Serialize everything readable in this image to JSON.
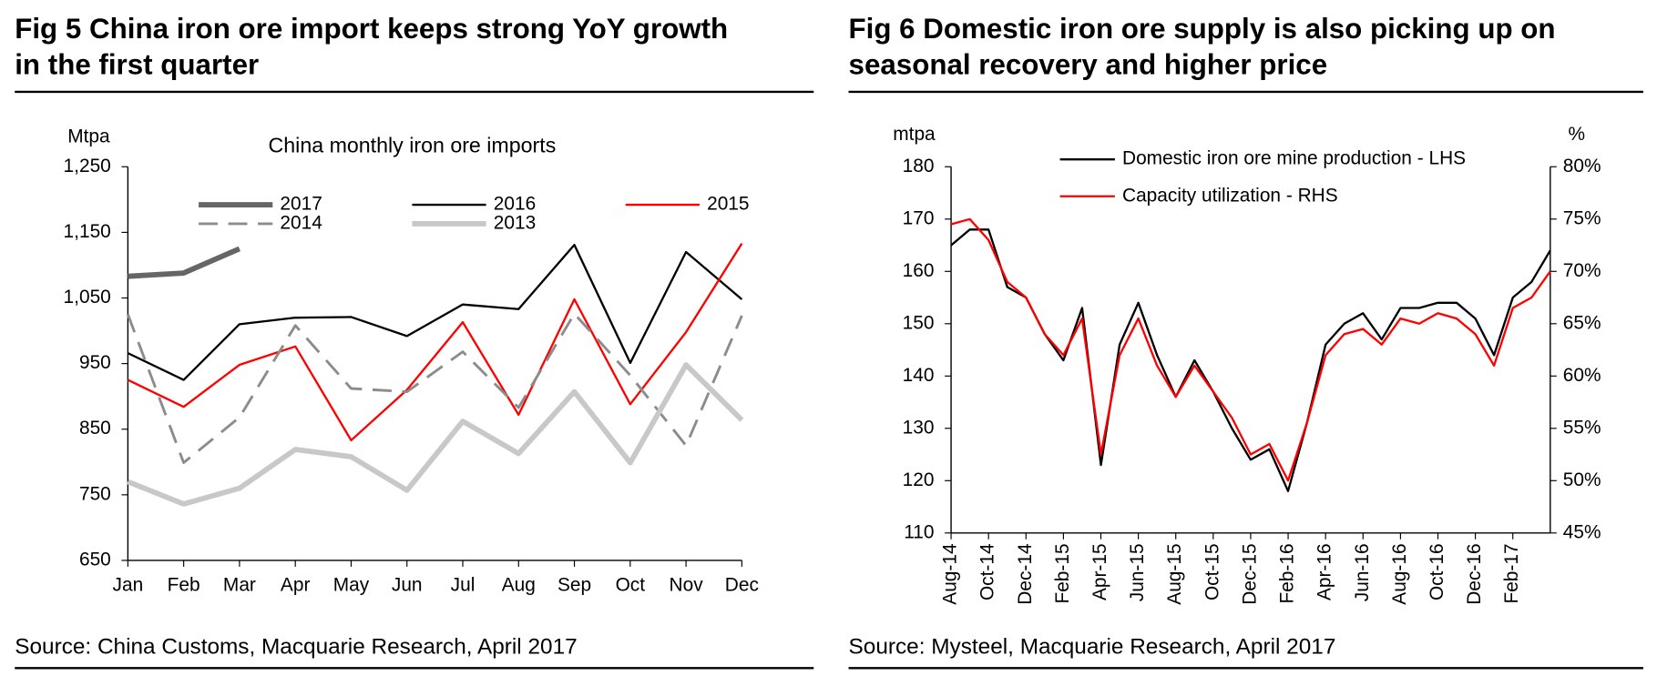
{
  "chart_data": [
    {
      "type": "line",
      "title": [
        "Fig 5   China iron ore import keeps strong YoY growth",
        "in the first quarter"
      ],
      "subtitle": "China monthly iron ore imports",
      "y_label": "Mtpa",
      "source": "Source: China Customs, Macquarie Research, April 2017",
      "categories": [
        "Jan",
        "Feb",
        "Mar",
        "Apr",
        "May",
        "Jun",
        "Jul",
        "Aug",
        "Sep",
        "Oct",
        "Nov",
        "Dec"
      ],
      "ylim": [
        650,
        1250
      ],
      "yticks": [
        650,
        750,
        850,
        950,
        {
          "value": 1050,
          "label": "1,050"
        },
        {
          "value": 1150,
          "label": "1,150"
        },
        {
          "value": 1250,
          "label": "1,250"
        }
      ],
      "grid": false,
      "series": [
        {
          "name": "2017",
          "color": "#666666",
          "width": 5,
          "dashed": false,
          "values": [
            1083,
            1088,
            1125,
            null,
            null,
            null,
            null,
            null,
            null,
            null,
            null,
            null
          ]
        },
        {
          "name": "2016",
          "color": "#000000",
          "width": 2,
          "dashed": false,
          "values": [
            966,
            925,
            1010,
            1020,
            1021,
            992,
            1040,
            1033,
            1131,
            951,
            1120,
            1048
          ]
        },
        {
          "name": "2015",
          "color": "#ff0000",
          "width": 2,
          "dashed": false,
          "values": [
            925,
            884,
            948,
            976,
            833,
            910,
            1013,
            872,
            1048,
            888,
            998,
            1133
          ]
        },
        {
          "name": "2014",
          "color": "#8c8c8c",
          "width": 2.5,
          "dashed": true,
          "values": [
            1025,
            799,
            868,
            1008,
            912,
            907,
            968,
            883,
            1026,
            932,
            825,
            1023
          ]
        },
        {
          "name": "2013",
          "color": "#c8c8c8",
          "width": 5,
          "dashed": false,
          "values": [
            770,
            736,
            760,
            819,
            808,
            757,
            862,
            813,
            907,
            799,
            948,
            864
          ]
        }
      ]
    },
    {
      "type": "line",
      "title": [
        "Fig 6   Domestic iron ore supply is also picking up on",
        "seasonal recovery and higher price"
      ],
      "y_label": "mtpa",
      "y2_label": "%",
      "source": "Source: Mysteel, Macquarie Research, April 2017",
      "categories": [
        "Aug-14",
        null,
        "Oct-14",
        null,
        "Dec-14",
        null,
        "Feb-15",
        null,
        "Apr-15",
        null,
        "Jun-15",
        null,
        "Aug-15",
        null,
        "Oct-15",
        null,
        "Dec-15",
        null,
        "Feb-16",
        null,
        "Apr-16",
        null,
        "Jun-16",
        null,
        "Aug-16",
        null,
        "Oct-16",
        null,
        "Dec-16",
        null,
        "Feb-17",
        null,
        null
      ],
      "ylim": [
        110,
        180
      ],
      "yticks": [
        110,
        120,
        130,
        140,
        150,
        160,
        170,
        180
      ],
      "y2lim": [
        45,
        80
      ],
      "y2ticks": [
        {
          "value": 45,
          "label": "45%"
        },
        {
          "value": 50,
          "label": "50%"
        },
        {
          "value": 55,
          "label": "55%"
        },
        {
          "value": 60,
          "label": "60%"
        },
        {
          "value": 65,
          "label": "65%"
        },
        {
          "value": 70,
          "label": "70%"
        },
        {
          "value": 75,
          "label": "75%"
        },
        {
          "value": 80,
          "label": "80%"
        }
      ],
      "grid": false,
      "series": [
        {
          "name": "Domestic iron ore mine production - LHS",
          "color": "#000000",
          "width": 2,
          "dashed": false,
          "values": [
            165,
            168,
            168,
            157,
            155,
            148,
            143,
            153,
            123,
            146,
            154,
            144,
            136,
            143,
            137,
            130,
            124,
            126,
            118,
            131,
            146,
            150,
            152,
            147,
            153,
            153,
            154,
            154,
            151,
            144,
            155,
            158,
            164
          ]
        },
        {
          "name": "Capacity utilization - RHS",
          "color": "#ff0000",
          "width": 2,
          "dashed": false,
          "axis": "y2",
          "values": [
            74.5,
            75,
            73,
            69,
            67.5,
            64,
            62,
            65.5,
            52.5,
            62,
            65.5,
            61,
            58,
            61,
            58.5,
            56,
            52.5,
            53.5,
            50,
            55.5,
            62,
            64,
            64.5,
            63,
            65.5,
            65,
            66,
            65.5,
            64,
            61,
            66.5,
            67.5,
            70
          ]
        }
      ]
    }
  ]
}
